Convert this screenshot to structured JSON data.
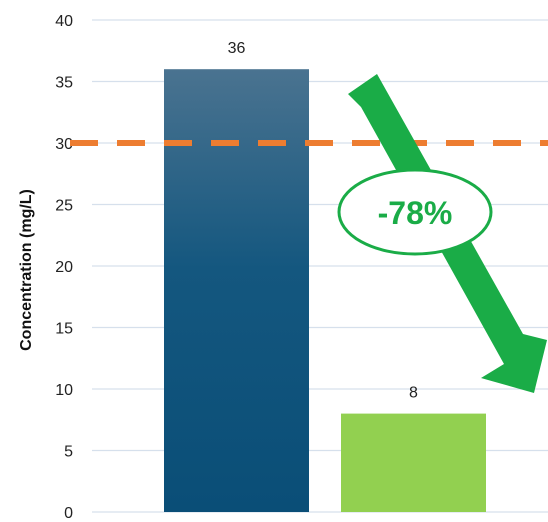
{
  "chart_data": {
    "type": "bar",
    "title": "",
    "xlabel": "",
    "ylabel": "Concentration (mg/L)",
    "ylim": [
      0,
      40
    ],
    "yticks": [
      0,
      5,
      10,
      15,
      20,
      25,
      30,
      35,
      40
    ],
    "grid": true,
    "categories": [
      "",
      ""
    ],
    "values": [
      36,
      8
    ],
    "data_labels": [
      "36",
      "8"
    ],
    "bar_colors": [
      "#0b4f79",
      "#92d050"
    ],
    "threshold": {
      "value": 30,
      "style": "dashed",
      "color": "#ed7d31"
    },
    "annotation": {
      "text": "-78%",
      "shape": "arrow-down-right",
      "color": "#1aac47"
    }
  }
}
